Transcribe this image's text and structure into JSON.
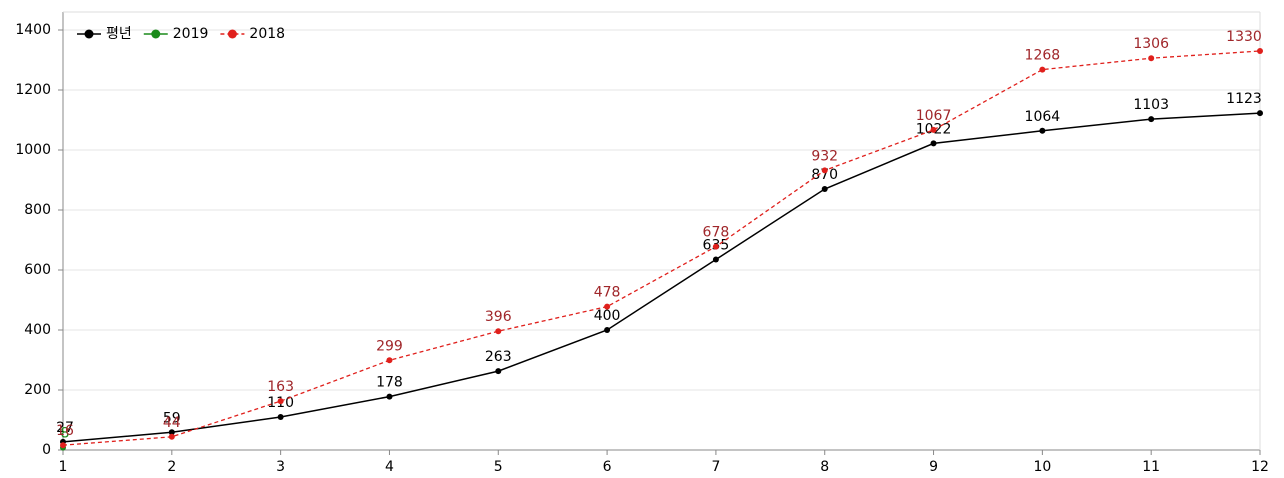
{
  "chart_data": {
    "type": "line",
    "x": [
      1,
      2,
      3,
      4,
      5,
      6,
      7,
      8,
      9,
      10,
      11,
      12
    ],
    "series": [
      {
        "name": "평년",
        "color": "#000000",
        "linestyle": "solid",
        "values": [
          27,
          59,
          110,
          178,
          263,
          400,
          635,
          870,
          1022,
          1064,
          1103,
          1123
        ]
      },
      {
        "name": "2019",
        "color": "#1a8a1a",
        "linestyle": "solid",
        "values": [
          8,
          null,
          null,
          null,
          null,
          null,
          null,
          null,
          null,
          null,
          null,
          null
        ]
      },
      {
        "name": "2018",
        "color": "#e0201c",
        "label_color": "#a0262a",
        "linestyle": "dashed",
        "values": [
          16,
          44,
          163,
          299,
          396,
          478,
          678,
          932,
          1067,
          1268,
          1306,
          1330
        ]
      }
    ],
    "xlim": [
      1,
      12
    ],
    "xticks": [
      1,
      2,
      3,
      4,
      5,
      6,
      7,
      8,
      9,
      10,
      11,
      12
    ],
    "ylim": [
      0,
      1460
    ],
    "yticks": [
      0,
      200,
      400,
      600,
      800,
      1000,
      1200,
      1400
    ],
    "grid": true,
    "legend": "upper left"
  }
}
